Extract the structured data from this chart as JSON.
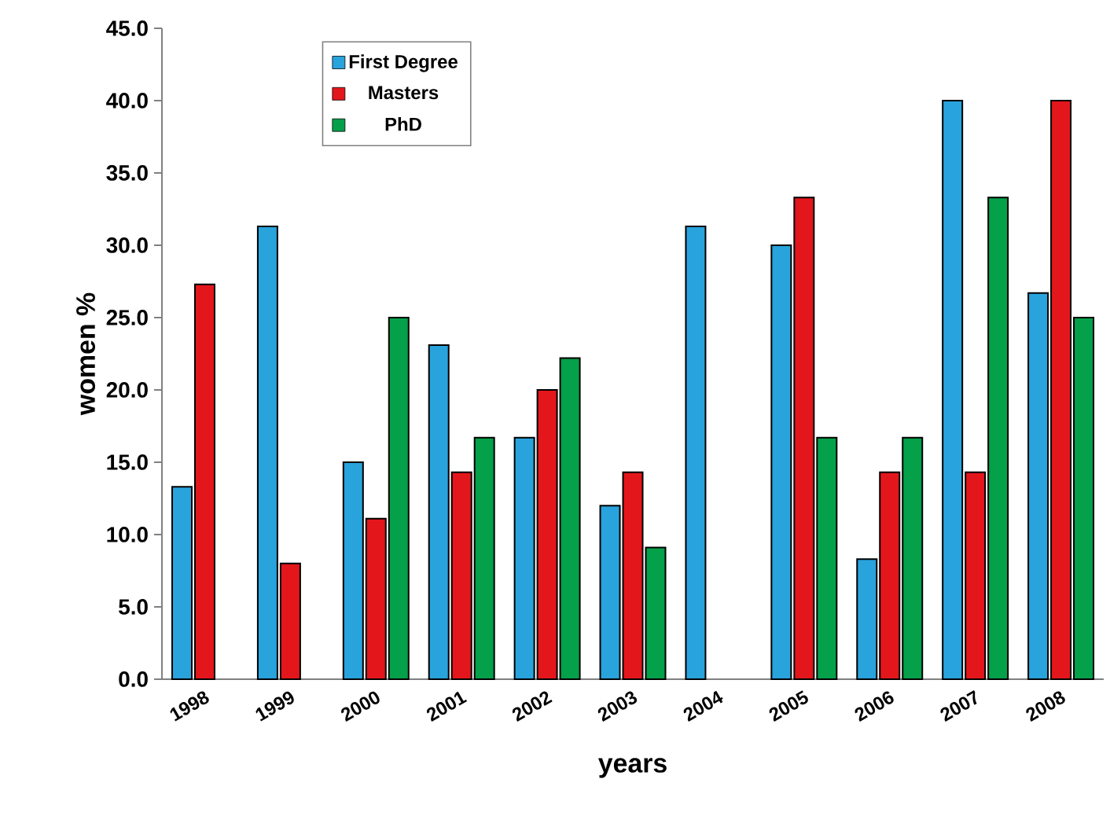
{
  "chart_data": {
    "type": "bar",
    "xlabel": "years",
    "ylabel": "women %",
    "categories": [
      "1998",
      "1999",
      "2000",
      "2001",
      "2002",
      "2003",
      "2004",
      "2005",
      "2006",
      "2007",
      "2008"
    ],
    "series": [
      {
        "name": "First Degree",
        "color": "#29a3dc",
        "values": [
          13.3,
          31.3,
          15.0,
          23.1,
          16.7,
          12.0,
          31.3,
          30.0,
          8.3,
          40.0,
          26.7
        ]
      },
      {
        "name": "Masters",
        "color": "#e3161c",
        "values": [
          27.3,
          8.0,
          11.1,
          14.3,
          20.0,
          14.3,
          null,
          33.3,
          14.3,
          14.3,
          40.0
        ]
      },
      {
        "name": "PhD",
        "color": "#04a04a",
        "values": [
          null,
          null,
          25.0,
          16.7,
          22.2,
          9.1,
          null,
          16.7,
          16.7,
          33.3,
          25.0
        ]
      }
    ],
    "ylim": [
      0,
      45
    ],
    "yticks": [
      {
        "value": 0,
        "label": "0.0"
      },
      {
        "value": 5,
        "label": "5.0"
      },
      {
        "value": 10,
        "label": "10.0"
      },
      {
        "value": 15,
        "label": "15.0"
      },
      {
        "value": 20,
        "label": "20.0"
      },
      {
        "value": 25,
        "label": "25.0"
      },
      {
        "value": 30,
        "label": "30.0"
      },
      {
        "value": 35,
        "label": "35.0"
      },
      {
        "value": 40,
        "label": "40.0"
      },
      {
        "value": 45,
        "label": "45.0"
      }
    ],
    "grid": false,
    "legend": "top left"
  }
}
